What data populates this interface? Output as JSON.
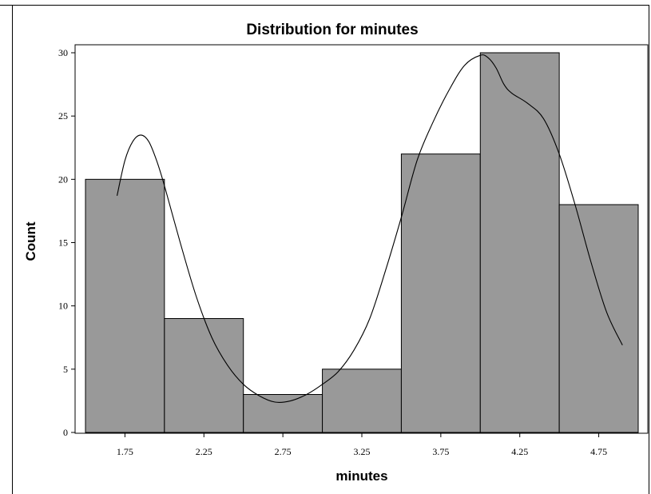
{
  "chart_data": {
    "type": "bar",
    "title": "Distribution for minutes",
    "xlabel": "minutes",
    "ylabel": "Count",
    "bins": [
      {
        "from": 1.5,
        "to": 2.0,
        "count": 20
      },
      {
        "from": 2.0,
        "to": 2.5,
        "count": 9
      },
      {
        "from": 2.5,
        "to": 3.0,
        "count": 3
      },
      {
        "from": 3.0,
        "to": 3.5,
        "count": 5
      },
      {
        "from": 3.5,
        "to": 4.0,
        "count": 22
      },
      {
        "from": 4.0,
        "to": 4.5,
        "count": 30
      },
      {
        "from": 4.5,
        "to": 5.0,
        "count": 18
      }
    ],
    "x_ticks": [
      "1.75",
      "2.25",
      "2.75",
      "3.25",
      "3.75",
      "4.25",
      "4.75"
    ],
    "y_ticks": [
      "0",
      "5",
      "10",
      "15",
      "20",
      "25",
      "30"
    ],
    "xlim": [
      1.5,
      5.0
    ],
    "ylim": [
      0,
      30
    ],
    "density_curve": [
      [
        1.7,
        18.7
      ],
      [
        1.75,
        21.5
      ],
      [
        1.8,
        23.0
      ],
      [
        1.85,
        23.5
      ],
      [
        1.9,
        23.0
      ],
      [
        1.95,
        21.5
      ],
      [
        2.0,
        19.5
      ],
      [
        2.1,
        15.0
      ],
      [
        2.2,
        10.8
      ],
      [
        2.3,
        7.5
      ],
      [
        2.4,
        5.3
      ],
      [
        2.5,
        3.8
      ],
      [
        2.6,
        2.9
      ],
      [
        2.7,
        2.4
      ],
      [
        2.8,
        2.5
      ],
      [
        2.9,
        3.0
      ],
      [
        3.0,
        3.8
      ],
      [
        3.1,
        4.8
      ],
      [
        3.2,
        6.5
      ],
      [
        3.3,
        9.0
      ],
      [
        3.4,
        12.8
      ],
      [
        3.5,
        17.0
      ],
      [
        3.6,
        21.5
      ],
      [
        3.7,
        24.5
      ],
      [
        3.8,
        27.0
      ],
      [
        3.9,
        29.0
      ],
      [
        4.0,
        29.8
      ],
      [
        4.05,
        29.6
      ],
      [
        4.1,
        28.8
      ],
      [
        4.15,
        27.5
      ],
      [
        4.2,
        26.8
      ],
      [
        4.3,
        26.0
      ],
      [
        4.4,
        24.8
      ],
      [
        4.5,
        22.0
      ],
      [
        4.6,
        18.0
      ],
      [
        4.7,
        13.5
      ],
      [
        4.8,
        9.5
      ],
      [
        4.9,
        6.9
      ]
    ],
    "bar_color": "#999999",
    "grid": false
  }
}
